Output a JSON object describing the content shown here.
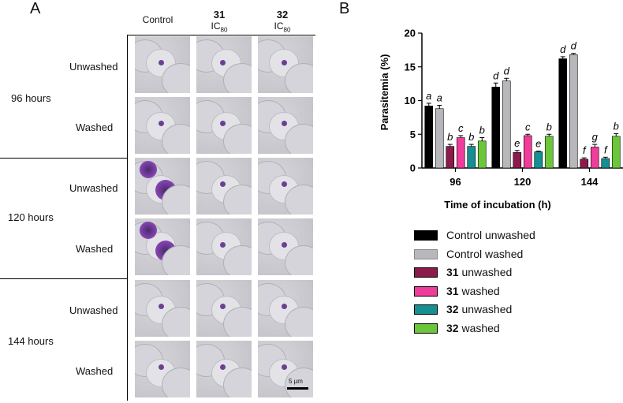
{
  "panel_a": {
    "letter": "A",
    "col_headers": [
      {
        "bold": "",
        "label": "Control",
        "sub": ""
      },
      {
        "bold": "31",
        "label": "IC",
        "sub": "80"
      },
      {
        "bold": "32",
        "label": "IC",
        "sub": "80"
      }
    ],
    "time_groups": [
      {
        "label": "96 hours",
        "rows": [
          "Unwashed",
          "Washed"
        ]
      },
      {
        "label": "120 hours",
        "rows": [
          "Unwashed",
          "Washed"
        ]
      },
      {
        "label": "144 hours",
        "rows": [
          "Unwashed",
          "Washed"
        ]
      }
    ],
    "scale_bar": "5 µm"
  },
  "panel_b": {
    "letter": "B"
  },
  "chart_data": {
    "type": "bar",
    "title": "",
    "xlabel": "Time of incubation (h)",
    "ylabel": "Parasitemia (%)",
    "ylim": [
      0,
      20
    ],
    "yticks": [
      0,
      5,
      10,
      15,
      20
    ],
    "categories": [
      "96",
      "120",
      "144"
    ],
    "series": [
      {
        "name": "Control unwashed",
        "num": "",
        "text": "Control unwashed",
        "color": "#000000",
        "values": [
          9.2,
          12.0,
          16.2
        ],
        "errors": [
          0.4,
          0.6,
          0.3
        ],
        "letters": [
          "a",
          "d",
          "d"
        ]
      },
      {
        "name": "Control washed",
        "num": "",
        "text": "Control washed",
        "color": "#b8b8bc",
        "values": [
          8.8,
          12.9,
          16.8
        ],
        "errors": [
          0.5,
          0.4,
          0.2
        ],
        "letters": [
          "a",
          "d",
          "d"
        ]
      },
      {
        "name": "31 unwashed",
        "num": "31",
        "text": " unwashed",
        "color": "#8c1a4b",
        "values": [
          3.2,
          2.3,
          1.3
        ],
        "errors": [
          0.3,
          0.3,
          0.2
        ],
        "letters": [
          "b",
          "e",
          "f"
        ]
      },
      {
        "name": "31 washed",
        "num": "31",
        "text": " washed",
        "color": "#f03c9a",
        "values": [
          4.5,
          4.8,
          3.1
        ],
        "errors": [
          0.3,
          0.2,
          0.4
        ],
        "letters": [
          "c",
          "c",
          "g"
        ]
      },
      {
        "name": "32 unwashed",
        "num": "32",
        "text": " unwashed",
        "color": "#168f92",
        "values": [
          3.2,
          2.4,
          1.4
        ],
        "errors": [
          0.3,
          0.1,
          0.2
        ],
        "letters": [
          "b",
          "e",
          "f"
        ]
      },
      {
        "name": "32 washed",
        "num": "32",
        "text": " washed",
        "color": "#6cc63a",
        "values": [
          4.0,
          4.7,
          4.7
        ],
        "errors": [
          0.5,
          0.3,
          0.4
        ],
        "letters": [
          "b",
          "b",
          "b"
        ]
      }
    ],
    "legend": "below"
  }
}
